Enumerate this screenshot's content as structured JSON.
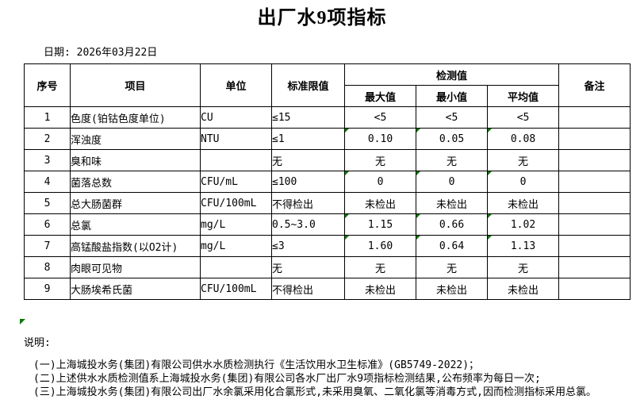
{
  "title": "出厂水9项指标",
  "date_line": "日期: 2026年03月22日",
  "table": {
    "headers": {
      "index": "序号",
      "item": "项目",
      "unit": "单位",
      "limit": "标准限值",
      "detection": "检测值",
      "max": "最大值",
      "min": "最小值",
      "avg": "平均值",
      "remark": "备注"
    },
    "rows": [
      {
        "no": "1",
        "item": "色度(铂钴色度单位)",
        "unit": "CU",
        "limit": "≤15",
        "max": "<5",
        "min": "<5",
        "avg": "<5",
        "remark": "",
        "flag": false
      },
      {
        "no": "2",
        "item": "浑浊度",
        "unit": "NTU",
        "limit": "≤1",
        "max": "0.10",
        "min": "0.05",
        "avg": "0.08",
        "remark": "",
        "flag": true
      },
      {
        "no": "3",
        "item": "臭和味",
        "unit": "",
        "limit": "无",
        "max": "无",
        "min": "无",
        "avg": "无",
        "remark": "",
        "flag": false
      },
      {
        "no": "4",
        "item": "菌落总数",
        "unit": "CFU/mL",
        "limit": "≤100",
        "max": "0",
        "min": "0",
        "avg": "0",
        "remark": "",
        "flag": true
      },
      {
        "no": "5",
        "item": "总大肠菌群",
        "unit": "CFU/100mL",
        "limit": "不得检出",
        "max": "未检出",
        "min": "未检出",
        "avg": "未检出",
        "remark": "",
        "flag": false
      },
      {
        "no": "6",
        "item": "总氯",
        "unit": "mg/L",
        "limit": "0.5~3.0",
        "max": "1.15",
        "min": "0.66",
        "avg": "1.02",
        "remark": "",
        "flag": true
      },
      {
        "no": "7",
        "item": "高锰酸盐指数(以O2计)",
        "unit": "mg/L",
        "limit": "≤3",
        "max": "1.60",
        "min": "0.64",
        "avg": "1.13",
        "remark": "",
        "flag": true
      },
      {
        "no": "8",
        "item": "肉眼可见物",
        "unit": "",
        "limit": "无",
        "max": "无",
        "min": "无",
        "avg": "无",
        "remark": "",
        "flag": false
      },
      {
        "no": "9",
        "item": "大肠埃希氏菌",
        "unit": "CFU/100mL",
        "limit": "不得检出",
        "max": "未检出",
        "min": "未检出",
        "avg": "未检出",
        "remark": "",
        "flag": false
      }
    ]
  },
  "notes": {
    "label": "说明:",
    "lines": [
      "(一)上海城投水务(集团)有限公司供水水质检测执行《生活饮用水卫生标准》(GB5749-2022)；",
      "(二)上述供水水质检测值系上海城投水务(集团)有限公司各水厂出厂水9项指标检测结果,公布频率为每日一次;",
      "(三)上海城投水务(集团)有限公司出厂水余氯采用化合氯形式,未采用臭氧、二氧化氯等消毒方式,因而检测指标采用总氯。"
    ]
  },
  "colors": {
    "flag_green": "#007a00",
    "border": "#000000"
  }
}
